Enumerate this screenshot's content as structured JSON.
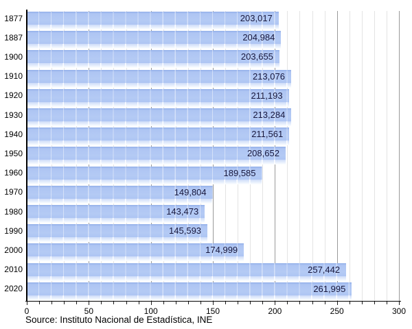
{
  "chart_data": {
    "type": "bar",
    "orientation": "horizontal",
    "title": "",
    "categories": [
      "1877",
      "1887",
      "1900",
      "1910",
      "1920",
      "1930",
      "1940",
      "1950",
      "1960",
      "1970",
      "1980",
      "1990",
      "2000",
      "2010",
      "2020"
    ],
    "values": [
      203017,
      204984,
      203655,
      213076,
      211193,
      213284,
      211561,
      208652,
      189585,
      149804,
      143473,
      145593,
      174999,
      257442,
      261995
    ],
    "points": [
      {
        "year": "1877",
        "value": 203017,
        "label": "203,017"
      },
      {
        "year": "1887",
        "value": 204984,
        "label": "204,984"
      },
      {
        "year": "1900",
        "value": 203655,
        "label": "203,655"
      },
      {
        "year": "1910",
        "value": 213076,
        "label": "213,076"
      },
      {
        "year": "1920",
        "value": 211193,
        "label": "211,193"
      },
      {
        "year": "1930",
        "value": 213284,
        "label": "213,284"
      },
      {
        "year": "1940",
        "value": 211561,
        "label": "211,561"
      },
      {
        "year": "1950",
        "value": 208652,
        "label": "208,652"
      },
      {
        "year": "1960",
        "value": 189585,
        "label": "189,585"
      },
      {
        "year": "1970",
        "value": 149804,
        "label": "149,804"
      },
      {
        "year": "1980",
        "value": 143473,
        "label": "143,473"
      },
      {
        "year": "1990",
        "value": 145593,
        "label": "145,593"
      },
      {
        "year": "2000",
        "value": 174999,
        "label": "174,999"
      },
      {
        "year": "2010",
        "value": 257442,
        "label": "257,442"
      },
      {
        "year": "2020",
        "value": 261995,
        "label": "261,995"
      }
    ],
    "x_axis": {
      "min": 0,
      "max": 300,
      "unit_divisor": 1000,
      "tick_labels": [
        "0",
        "50",
        "100",
        "150",
        "200",
        "250",
        "300"
      ],
      "major_step": 50,
      "minor_grid_step": 10
    },
    "grid": "on",
    "legend": "none",
    "source": "Source: Instituto Nacional de Estadística, INE",
    "colors": {
      "bar": "#aec5f3",
      "bar_edge": "#92b0ea",
      "reflection_top": "#cddbf8",
      "grid_minor": "#e3e3e3",
      "grid_major": "#999999",
      "axis": "#000000",
      "value_text": "#17173d"
    }
  }
}
